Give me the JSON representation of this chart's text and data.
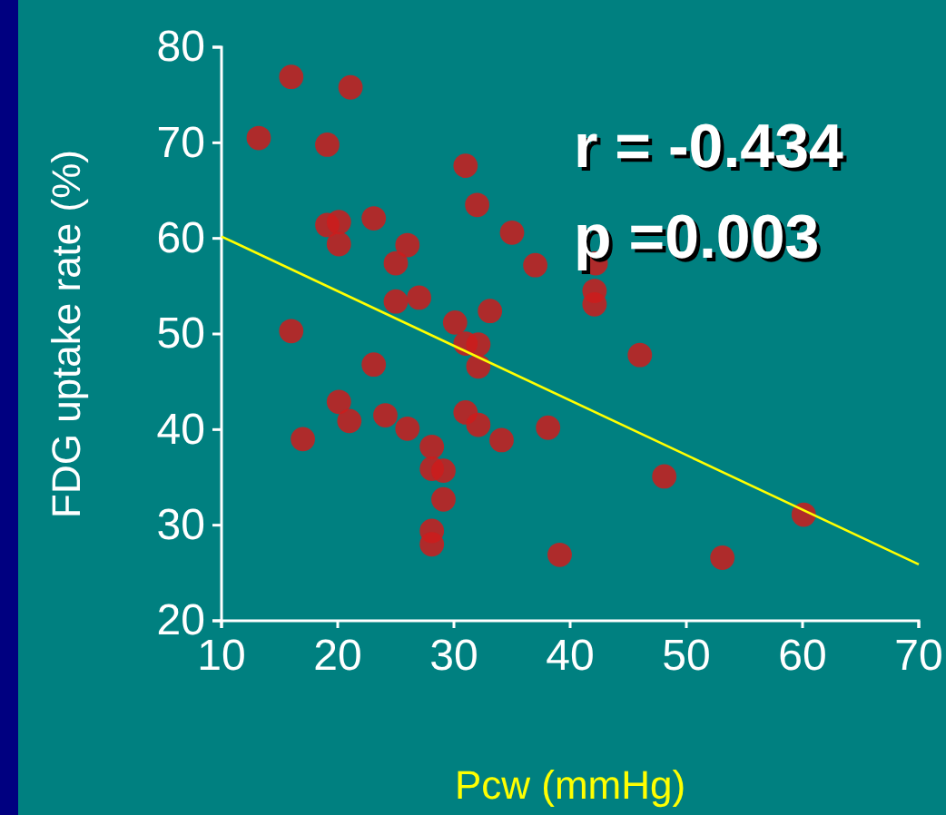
{
  "chart_data": {
    "type": "scatter",
    "xlabel": "Pcw (mmHg)",
    "ylabel": "FDG uptake rate (%)",
    "annotations": [
      "r = -0.434",
      "p =0.003"
    ],
    "xlim": [
      10,
      70
    ],
    "xticks": [
      10,
      20,
      30,
      40,
      50,
      60,
      70
    ],
    "ylim": [
      20,
      80
    ],
    "yticks": [
      20,
      30,
      40,
      50,
      60,
      70,
      80
    ],
    "grid": false,
    "marker": "circle",
    "series": [
      {
        "color": "#cc1c1c",
        "x": [
          13.2,
          16.0,
          21.1,
          19.1,
          19.1,
          20.1,
          20.1,
          23.1,
          26.0,
          25.0,
          25.0,
          27.0,
          31.0,
          32.0,
          35.0,
          37.0,
          30.1,
          33.1,
          31.0,
          32.1,
          32.1,
          16.0,
          23.1,
          20.1,
          21.0,
          17.0,
          24.1,
          26.0,
          31.0,
          32.1,
          34.1,
          38.1,
          28.1,
          28.1,
          29.1,
          29.1,
          28.1,
          28.1,
          39.1,
          42.1,
          42.1,
          42.2,
          46.0,
          48.1,
          60.1,
          53.1
        ],
        "values": [
          70.5,
          76.9,
          75.8,
          69.8,
          61.4,
          61.7,
          59.4,
          62.1,
          59.3,
          57.4,
          53.4,
          53.8,
          67.6,
          63.5,
          60.6,
          57.2,
          51.2,
          52.4,
          49.0,
          48.9,
          46.6,
          50.3,
          46.8,
          42.9,
          40.9,
          39.0,
          41.5,
          40.1,
          41.8,
          40.5,
          38.9,
          40.2,
          38.2,
          35.9,
          35.7,
          32.7,
          29.4,
          28.0,
          26.9,
          54.5,
          53.1,
          57.4,
          47.8,
          35.1,
          31.1,
          26.6
        ]
      },
      {
        "type": "line",
        "color": "#ffff00",
        "x": [
          10,
          70
        ],
        "values": [
          60.2,
          25.9
        ],
        "line_style": "solid",
        "marker": "none"
      }
    ]
  }
}
